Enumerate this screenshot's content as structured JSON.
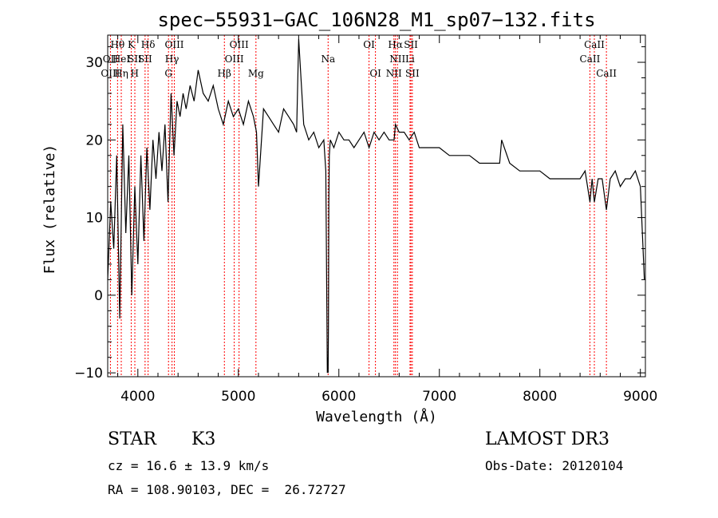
{
  "chart_data": {
    "type": "line",
    "title": "spec−55931−GAC_106N28_M1_sp07−132.fits",
    "xlabel": "Wavelength (Å)",
    "ylabel": "Flux (relative)",
    "xlim": [
      3700,
      9050
    ],
    "ylim": [
      -10.5,
      33.5
    ],
    "x_ticks": [
      4000,
      5000,
      6000,
      7000,
      8000,
      9000
    ],
    "y_ticks": [
      -10,
      0,
      10,
      20,
      30
    ],
    "y_tick_labels": [
      "−10",
      "0",
      "10",
      "20",
      "30"
    ],
    "series": [
      {
        "name": "flux",
        "x": [
          3700,
          3730,
          3760,
          3790,
          3820,
          3850,
          3880,
          3910,
          3940,
          3970,
          4000,
          4030,
          4060,
          4090,
          4120,
          4150,
          4180,
          4210,
          4240,
          4270,
          4300,
          4330,
          4360,
          4390,
          4420,
          4450,
          4480,
          4520,
          4560,
          4600,
          4650,
          4700,
          4750,
          4800,
          4850,
          4900,
          4950,
          5000,
          5050,
          5100,
          5150,
          5180,
          5200,
          5250,
          5300,
          5350,
          5400,
          5450,
          5500,
          5550,
          5580,
          5600,
          5650,
          5700,
          5750,
          5800,
          5850,
          5870,
          5885,
          5890,
          5893,
          5896,
          5900,
          5905,
          5915,
          5950,
          6000,
          6050,
          6100,
          6150,
          6200,
          6250,
          6300,
          6350,
          6400,
          6450,
          6500,
          6550,
          6563,
          6600,
          6650,
          6700,
          6750,
          6800,
          6850,
          6900,
          6950,
          7000,
          7100,
          7200,
          7300,
          7400,
          7500,
          7600,
          7620,
          7700,
          7800,
          7900,
          8000,
          8100,
          8200,
          8300,
          8400,
          8450,
          8498,
          8520,
          8542,
          8580,
          8620,
          8662,
          8700,
          8750,
          8800,
          8850,
          8900,
          8950,
          9000,
          9020,
          9040
        ],
        "y": [
          2,
          12,
          6,
          18,
          -3,
          22,
          8,
          18,
          0,
          14,
          4,
          18,
          7,
          19,
          11,
          20,
          15,
          21,
          16,
          22,
          12,
          26,
          18,
          25,
          23,
          26,
          24,
          27,
          25,
          29,
          26,
          25,
          27,
          24,
          22,
          25,
          23,
          24,
          22,
          25,
          23,
          21,
          14,
          24,
          23,
          22,
          21,
          24,
          23,
          22,
          21,
          33,
          22,
          20,
          21,
          19,
          20,
          16,
          -10,
          -8,
          -10,
          -4,
          12,
          18,
          20,
          19,
          21,
          20,
          20,
          19,
          20,
          21,
          19,
          21,
          20,
          21,
          20,
          20,
          22,
          21,
          21,
          20,
          21,
          19,
          19,
          19,
          19,
          19,
          18,
          18,
          18,
          17,
          17,
          17,
          20,
          17,
          16,
          16,
          16,
          15,
          15,
          15,
          15,
          16,
          12,
          15,
          12,
          15,
          15,
          11,
          15,
          16,
          14,
          15,
          15,
          16,
          14,
          8,
          2
        ]
      }
    ],
    "line_markers": [
      {
        "label": "Hθ",
        "x": 3798,
        "row": 0
      },
      {
        "label": "OII",
        "x": 3727,
        "row": 1
      },
      {
        "label": "OIII",
        "x": 3727,
        "row": 2
      },
      {
        "label": "HeI",
        "x": 3835,
        "row": 1
      },
      {
        "label": "Hη",
        "x": 3835,
        "row": 2
      },
      {
        "label": "K",
        "x": 3934,
        "row": 0
      },
      {
        "label": "SII",
        "x": 3970,
        "row": 1
      },
      {
        "label": "H",
        "x": 3968,
        "row": 2
      },
      {
        "label": "Hδ",
        "x": 4102,
        "row": 0
      },
      {
        "label": "SII",
        "x": 4072,
        "row": 1
      },
      {
        "label": "OIII",
        "x": 4363,
        "row": 0
      },
      {
        "label": "Hγ",
        "x": 4340,
        "row": 1
      },
      {
        "label": "G",
        "x": 4305,
        "row": 2
      },
      {
        "label": "Hβ",
        "x": 4861,
        "row": 2
      },
      {
        "label": "OIII",
        "x": 5007,
        "row": 0
      },
      {
        "label": "OIII",
        "x": 4959,
        "row": 1
      },
      {
        "label": "Mg",
        "x": 5175,
        "row": 2
      },
      {
        "label": "Na",
        "x": 5893,
        "row": 1
      },
      {
        "label": "OI",
        "x": 6300,
        "row": 0
      },
      {
        "label": "OI",
        "x": 6364,
        "row": 2
      },
      {
        "label": "Hα",
        "x": 6563,
        "row": 0
      },
      {
        "label": "NII",
        "x": 6583,
        "row": 1
      },
      {
        "label": "NII",
        "x": 6548,
        "row": 2
      },
      {
        "label": "SII",
        "x": 6717,
        "row": 0
      },
      {
        "label": "Li",
        "x": 6708,
        "row": 1
      },
      {
        "label": "SII",
        "x": 6731,
        "row": 2
      },
      {
        "label": "CaII",
        "x": 8542,
        "row": 0
      },
      {
        "label": "CaII",
        "x": 8498,
        "row": 1
      },
      {
        "label": "CaII",
        "x": 8662,
        "row": 2
      }
    ],
    "marker_color": "#ff0000",
    "line_color": "#000000"
  },
  "info": {
    "class_label": "STAR",
    "subclass_label": "K3",
    "survey": "LAMOST DR3",
    "redshift": "cz = 16.6 ± 13.9 km/s",
    "obs_date": "Obs-Date: 20120104",
    "coords": "RA = 108.90103, DEC =  26.72727"
  }
}
